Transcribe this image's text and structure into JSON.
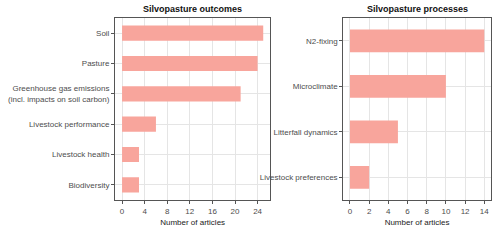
{
  "chart_data": [
    {
      "type": "bar",
      "orientation": "horizontal",
      "title": "Silvopasture outcomes",
      "x_label": "Number of articles",
      "categories": [
        "Soil",
        "Pasture",
        "Greenhouse gas emissions\n(incl. impacts on soil carbon)",
        "Livestock performance",
        "Livestock health",
        "Biodiversity"
      ],
      "values": [
        25,
        24,
        21,
        6,
        3,
        3
      ],
      "color": "#f8a59c",
      "xlim": [
        -1.25,
        26.25
      ],
      "xticks": [
        0,
        4,
        8,
        12,
        16,
        20,
        24
      ],
      "grid": true
    },
    {
      "type": "bar",
      "orientation": "horizontal",
      "title": "Silvopasture processes",
      "x_label": "Number of articles",
      "categories": [
        "N2-fixing",
        "Microclimate",
        "Litterfall dynamics",
        "Livestock preferences"
      ],
      "values": [
        14,
        10,
        5,
        2
      ],
      "color": "#f8a59c",
      "xlim": [
        -0.7,
        14.7
      ],
      "xticks": [
        0,
        2,
        4,
        6,
        8,
        10,
        12,
        14
      ],
      "grid": true
    }
  ]
}
